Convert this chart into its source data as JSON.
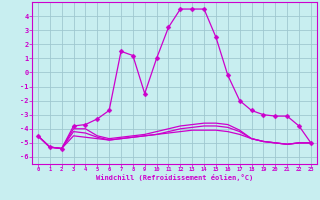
{
  "xlabel": "Windchill (Refroidissement éolien,°C)",
  "background_color": "#c8eef0",
  "grid_color": "#a0c8d0",
  "line_color": "#cc00cc",
  "x_hours": [
    0,
    1,
    2,
    3,
    4,
    5,
    6,
    7,
    8,
    9,
    10,
    11,
    12,
    13,
    14,
    15,
    16,
    17,
    18,
    19,
    20,
    21,
    22,
    23
  ],
  "series1": [
    -4.5,
    -5.3,
    -5.4,
    -3.8,
    -3.7,
    -3.3,
    -2.7,
    1.5,
    1.2,
    -1.5,
    1.0,
    3.2,
    4.5,
    4.5,
    4.5,
    2.5,
    -0.2,
    -2.0,
    -2.7,
    -3.0,
    -3.1,
    -3.1,
    -3.8,
    -5.0
  ],
  "series2": [
    -4.5,
    -5.3,
    -5.4,
    -4.0,
    -4.0,
    -4.5,
    -4.7,
    -4.6,
    -4.5,
    -4.4,
    -4.2,
    -4.0,
    -3.8,
    -3.7,
    -3.6,
    -3.6,
    -3.7,
    -4.1,
    -4.7,
    -4.9,
    -5.0,
    -5.1,
    -5.0,
    -5.0
  ],
  "series3": [
    -4.5,
    -5.3,
    -5.4,
    -4.2,
    -4.3,
    -4.6,
    -4.8,
    -4.7,
    -4.6,
    -4.5,
    -4.4,
    -4.2,
    -4.0,
    -3.9,
    -3.8,
    -3.8,
    -3.9,
    -4.2,
    -4.7,
    -4.9,
    -5.0,
    -5.1,
    -5.0,
    -5.0
  ],
  "series4": [
    -4.5,
    -5.3,
    -5.4,
    -4.5,
    -4.6,
    -4.7,
    -4.8,
    -4.7,
    -4.6,
    -4.5,
    -4.4,
    -4.3,
    -4.2,
    -4.1,
    -4.1,
    -4.1,
    -4.2,
    -4.4,
    -4.7,
    -4.9,
    -5.0,
    -5.1,
    -5.0,
    -5.0
  ],
  "ylim": [
    -6.5,
    5.0
  ],
  "yticks": [
    -6,
    -5,
    -4,
    -3,
    -2,
    -1,
    0,
    1,
    2,
    3,
    4
  ]
}
